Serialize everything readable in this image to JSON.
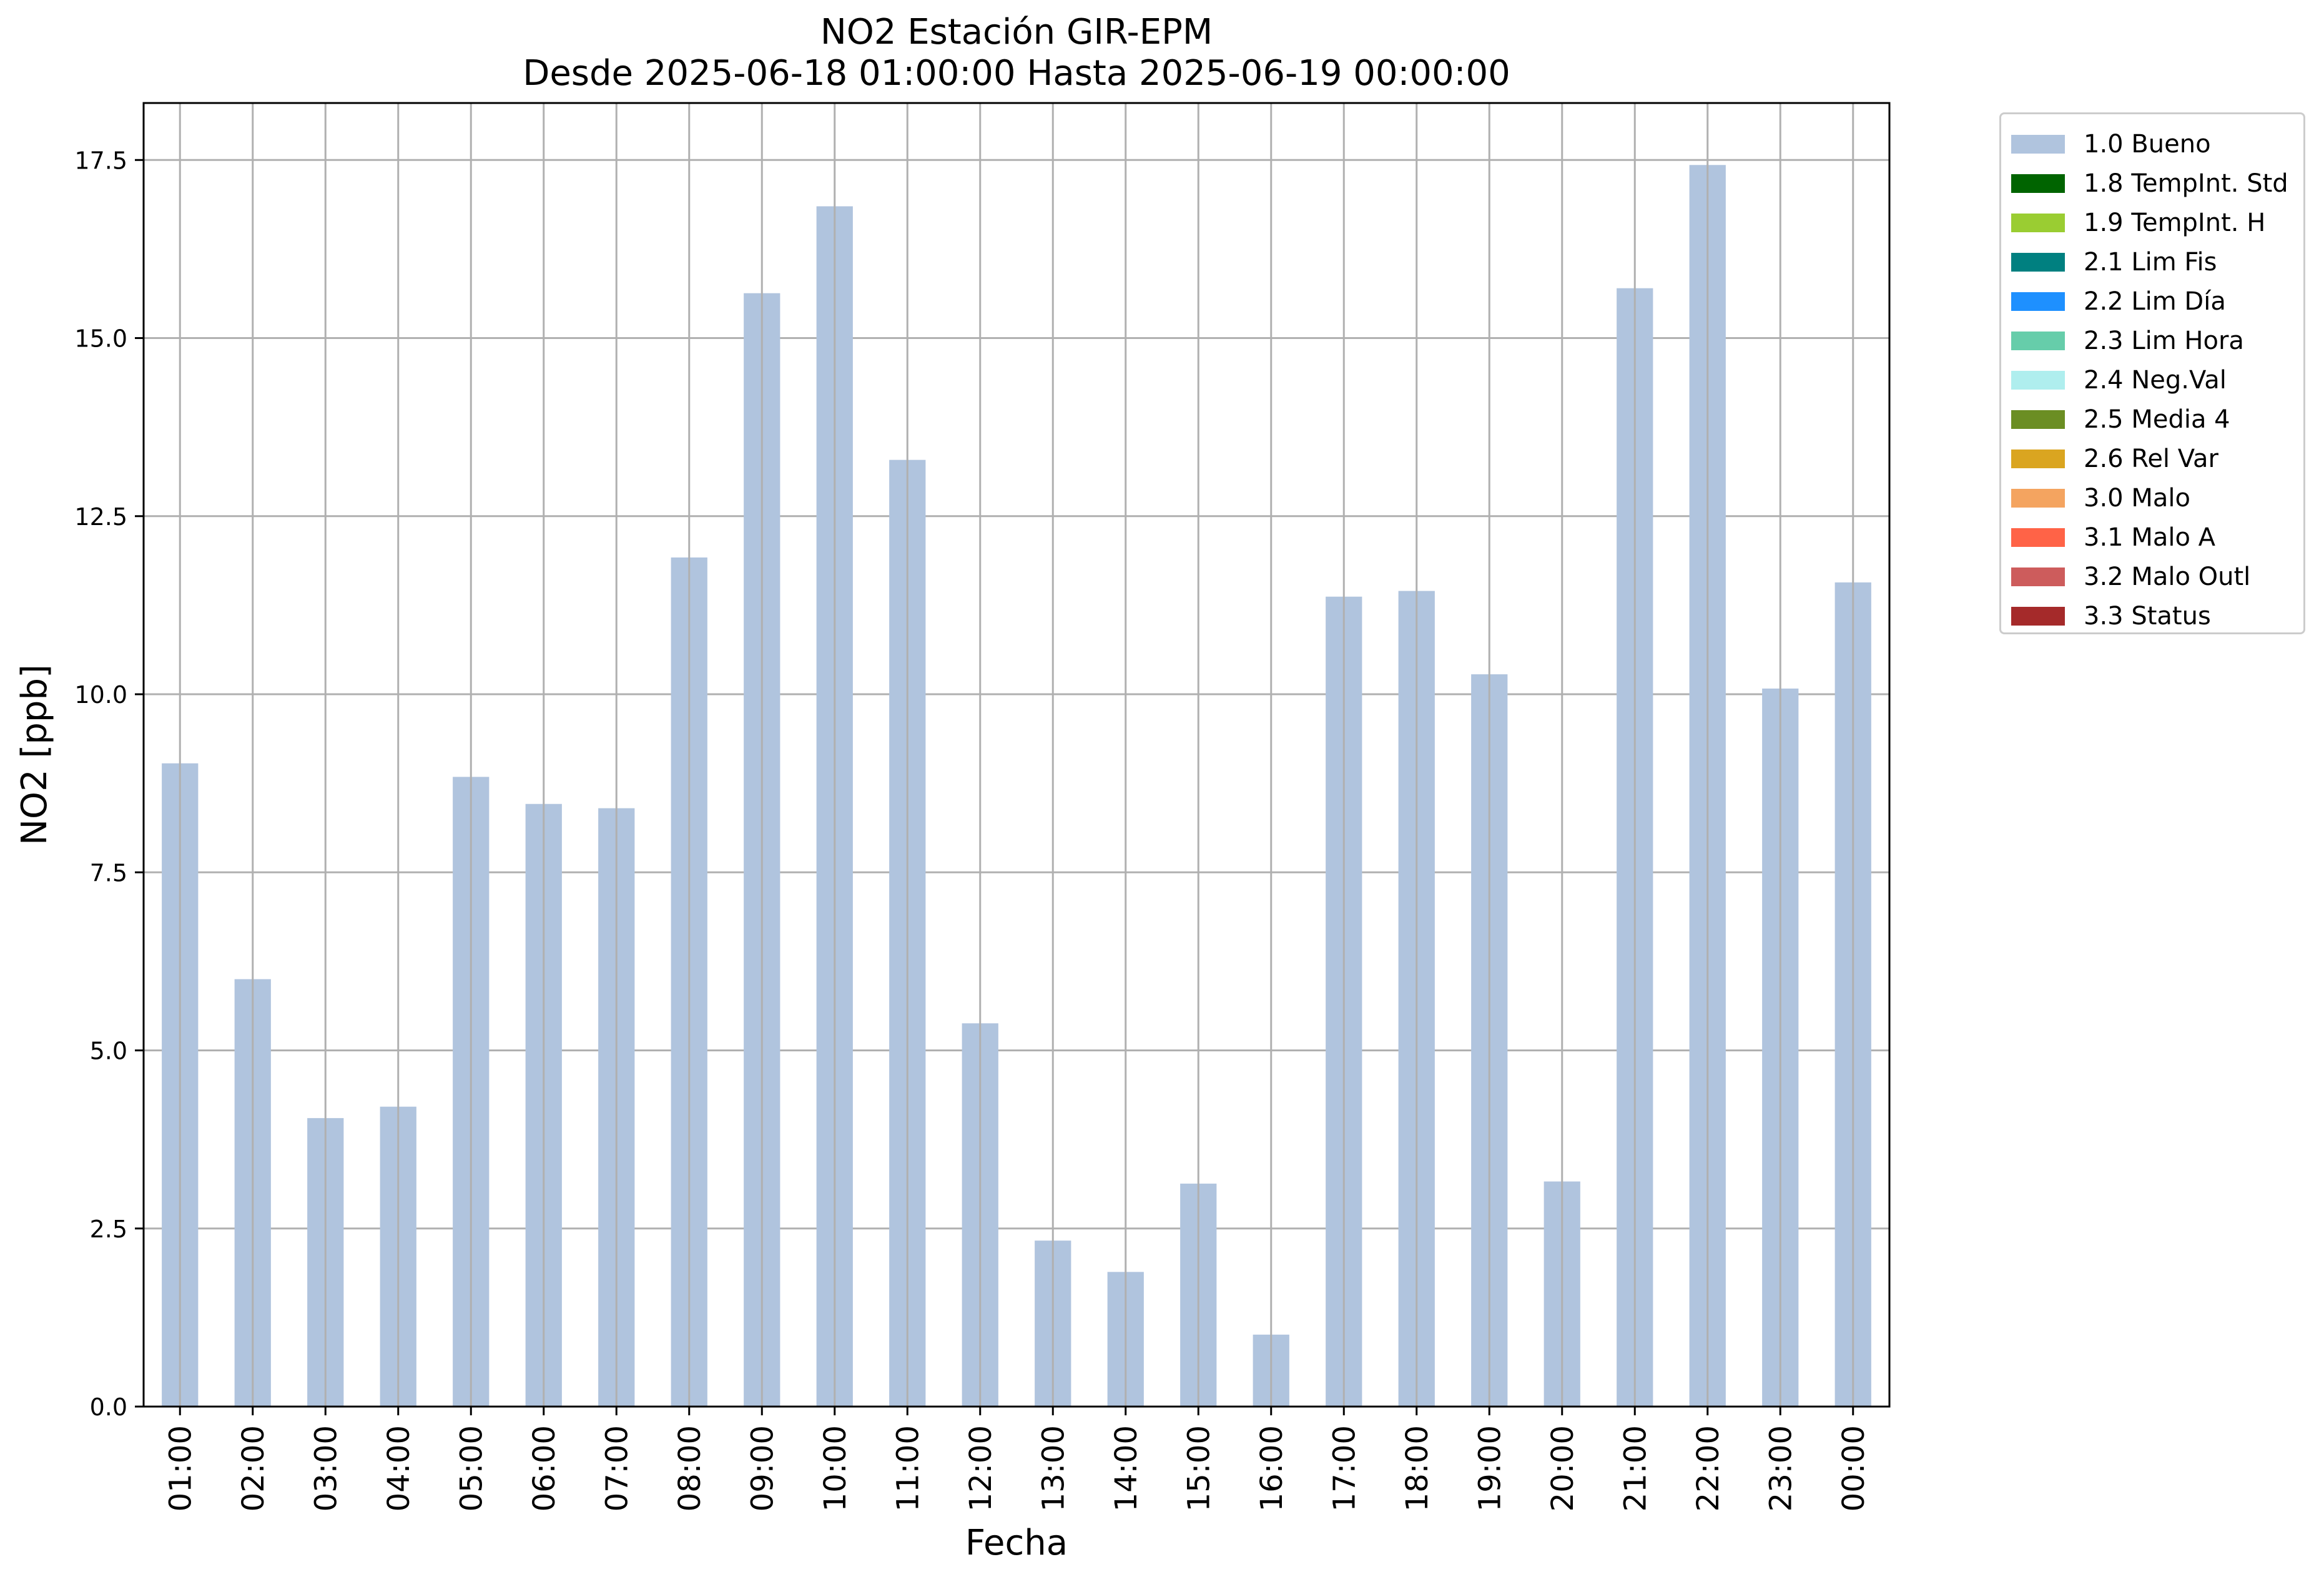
{
  "chart_data": {
    "type": "bar",
    "title": "NO2 Estación GIR-EPM",
    "subtitle": "Desde 2025-06-18 01:00:00 Hasta 2025-06-19 00:00:00",
    "xlabel": "Fecha",
    "ylabel": "NO2 [ppb]",
    "ylim": [
      0,
      18.3
    ],
    "yticks": [
      "0.0",
      "2.5",
      "5.0",
      "7.5",
      "10.0",
      "12.5",
      "15.0",
      "17.5"
    ],
    "grid": true,
    "legend_position": "outside-right-top",
    "categories": [
      "01:00",
      "02:00",
      "03:00",
      "04:00",
      "05:00",
      "06:00",
      "07:00",
      "08:00",
      "09:00",
      "10:00",
      "11:00",
      "12:00",
      "13:00",
      "14:00",
      "15:00",
      "16:00",
      "17:00",
      "18:00",
      "19:00",
      "20:00",
      "21:00",
      "22:00",
      "23:00",
      "00:00"
    ],
    "series": [
      {
        "name": "1.0 Bueno",
        "color": "#b0c4de",
        "values": [
          9.03,
          6.0,
          4.05,
          4.21,
          8.84,
          8.46,
          8.4,
          11.92,
          15.63,
          16.85,
          13.29,
          5.38,
          2.33,
          1.89,
          3.13,
          1.01,
          11.37,
          11.45,
          10.28,
          3.16,
          15.7,
          17.43,
          10.08,
          11.57
        ]
      }
    ],
    "legend": [
      {
        "label": "1.0 Bueno",
        "color": "#b0c4de"
      },
      {
        "label": "1.8 TempInt. Std",
        "color": "#006400"
      },
      {
        "label": "1.9 TempInt. H",
        "color": "#9acd32"
      },
      {
        "label": "2.1 Lim Fis",
        "color": "#008080"
      },
      {
        "label": "2.2 Lim Día",
        "color": "#1e90ff"
      },
      {
        "label": "2.3 Lim Hora",
        "color": "#66cdaa"
      },
      {
        "label": "2.4 Neg.Val",
        "color": "#afeeee"
      },
      {
        "label": "2.5 Media 4",
        "color": "#6b8e23"
      },
      {
        "label": "2.6 Rel Var",
        "color": "#daa520"
      },
      {
        "label": "3.0 Malo",
        "color": "#f4a460"
      },
      {
        "label": "3.1 Malo A",
        "color": "#ff6347"
      },
      {
        "label": "3.2 Malo Outl",
        "color": "#cd5c5c"
      },
      {
        "label": "3.3 Status",
        "color": "#a52a2a"
      }
    ]
  }
}
